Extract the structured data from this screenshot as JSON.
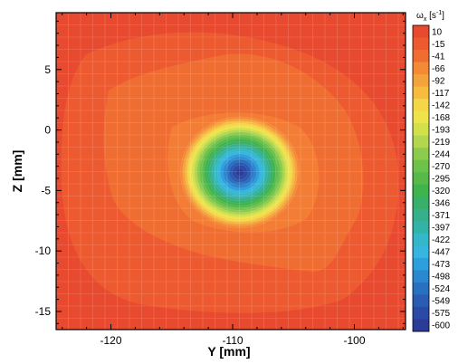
{
  "chart_data": {
    "type": "heatmap",
    "title": "",
    "xlabel": "Y  [mm]",
    "ylabel": "Z  [mm]",
    "xlim": [
      -124.5,
      -95.8
    ],
    "ylim": [
      -16.5,
      9.7
    ],
    "xticks": [
      -120,
      -110,
      -100
    ],
    "yticks": [
      5,
      0,
      -5,
      -10,
      -15
    ],
    "grid": false,
    "colorbar": {
      "title": "ω",
      "title_subscript": "x",
      "units": "[s",
      "units_sup": "-1",
      "units_close": "]",
      "levels": [
        "10",
        "-15",
        "-41",
        "-66",
        "-92",
        "-117",
        "-142",
        "-168",
        "-193",
        "-219",
        "-244",
        "-270",
        "-295",
        "-320",
        "-346",
        "-371",
        "-397",
        "-422",
        "-447",
        "-473",
        "-498",
        "-524",
        "-549",
        "-575",
        "-600"
      ],
      "colors": [
        "#e84a2f",
        "#ed5a30",
        "#f06d32",
        "#f58a36",
        "#f4a23c",
        "#f6bc40",
        "#f4d748",
        "#eee34a",
        "#d2e04c",
        "#b2d64e",
        "#8dcb4d",
        "#6dc24a",
        "#56b94a",
        "#3fb34c",
        "#39b06a",
        "#35b08a",
        "#33b3a8",
        "#34b7c9",
        "#35b5e0",
        "#2d9fdc",
        "#2b87cf",
        "#2a70c1",
        "#2a5cb4",
        "#2a4aa6",
        "#2b3b98"
      ]
    },
    "vortex": {
      "center_y": -109.4,
      "center_z": -3.5,
      "radius_y": 4.9,
      "radius_z": 4.6,
      "peak_value": -600
    },
    "background_value": -41
  }
}
